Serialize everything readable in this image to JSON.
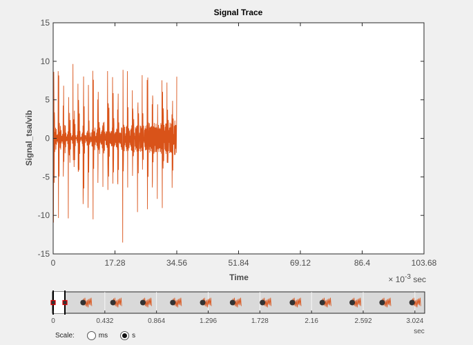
{
  "colors": {
    "signal": "#d95319",
    "axis": "#262626",
    "axis_text": "#4d4d4d",
    "background": "#f0f0f0",
    "panner_bg": "#d9d9d9"
  },
  "chart_data": [
    {
      "type": "line",
      "title": "Signal Trace",
      "xlabel": "Time",
      "ylabel": "Signal_tsa/vib",
      "x_units_label": "sec",
      "x_exponent": "-3",
      "xlim": [
        0,
        103.68
      ],
      "ylim": [
        -15,
        15
      ],
      "x_ticks": [
        "0",
        "17.28",
        "34.56",
        "51.84",
        "69.12",
        "86.4",
        "103.68"
      ],
      "y_ticks": [
        "15",
        "10",
        "5",
        "0",
        "-5",
        "-10",
        "-15"
      ],
      "grid": false,
      "series": [
        {
          "signal_end_ms": 34.56,
          "num_cycles": 25,
          "envelope_max": [
            8,
            11.8
          ],
          "envelope_min": [
            -5.5,
            -11.8
          ]
        }
      ]
    },
    {
      "type": "line",
      "name": "overview-panner",
      "xlim": [
        0,
        3.1
      ],
      "x_ticks": [
        "0",
        "0.432",
        "0.864",
        "1.296",
        "1.728",
        "2.16",
        "2.592",
        "3.024"
      ],
      "x_units_label": "sec",
      "view_window_s": [
        0,
        0.0346
      ],
      "marker_times_s": [
        0.25,
        0.5,
        0.75,
        1.0,
        1.25,
        1.5,
        1.75,
        2.0,
        2.25,
        2.5,
        2.75,
        3.0
      ]
    }
  ],
  "scale_control": {
    "label": "Scale:",
    "options": [
      {
        "label": "ms",
        "selected": false
      },
      {
        "label": "s",
        "selected": true
      }
    ]
  }
}
